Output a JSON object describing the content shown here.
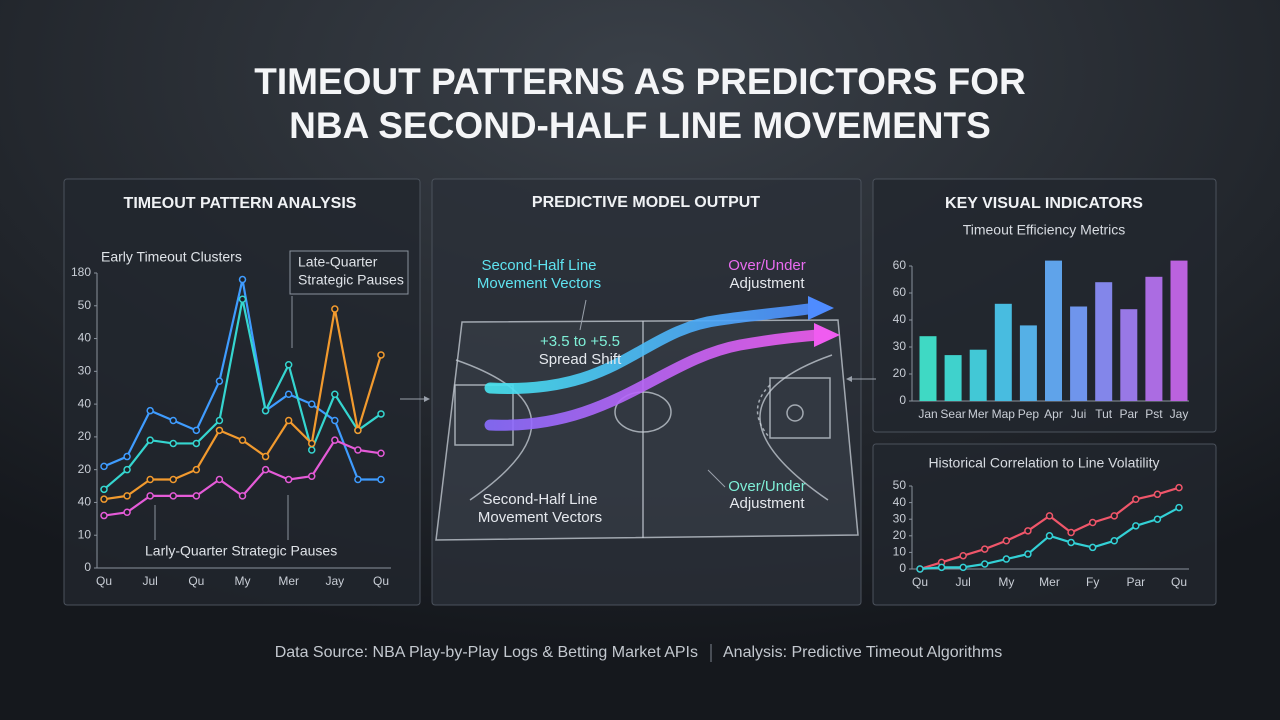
{
  "title": [
    "TIMEOUT PATTERNS AS PREDICTORS FOR",
    "NBA SECOND-HALF LINE MOVEMENTS"
  ],
  "chart_data": [
    {
      "type": "line",
      "title": "TIMEOUT PATTERN ANALYSIS",
      "annotations": [
        [
          "Early Timeout Clusters"
        ],
        [
          "Late-Quarter",
          "Strategic Pauses"
        ],
        [
          "Larly-Quarter Strategic Pauses"
        ]
      ],
      "categories": [
        "Qu",
        null,
        "Jul",
        null,
        "Qu",
        null,
        "My",
        null,
        "Mer",
        null,
        "Jay",
        null,
        "Qu"
      ],
      "ylim": [
        0,
        90
      ],
      "yticks": [
        0,
        10,
        {
          "value": 20,
          "label": "40"
        },
        {
          "value": 30,
          "label": "20"
        },
        {
          "value": 40,
          "label": "20"
        },
        {
          "value": 50,
          "label": "40"
        },
        {
          "value": 60,
          "label": "30"
        },
        {
          "value": 70,
          "label": "40"
        },
        {
          "value": 80,
          "label": "50"
        },
        {
          "value": 90,
          "label": "180"
        }
      ],
      "grid": false,
      "series": [
        {
          "color": "#3f9cff",
          "values": [
            31,
            34,
            48,
            45,
            42,
            57,
            88,
            48,
            53,
            50,
            45,
            27,
            27
          ]
        },
        {
          "color": "#35d6d0",
          "values": [
            24,
            30,
            39,
            38,
            38,
            45,
            82,
            48,
            62,
            36,
            53,
            42,
            47
          ]
        },
        {
          "color": "#f29a2e",
          "values": [
            21,
            22,
            27,
            27,
            30,
            42,
            39,
            34,
            45,
            38,
            79,
            42,
            65
          ]
        },
        {
          "color": "#e55bd8",
          "values": [
            16,
            17,
            22,
            22,
            22,
            27,
            22,
            30,
            27,
            28,
            39,
            36,
            35
          ]
        }
      ]
    },
    {
      "type": "bar",
      "title": "KEY VISUAL INDICATORS",
      "subtitle": "Timeout Efficiency Metrics",
      "categories": [
        "Jan",
        "Sear",
        "Mer",
        "Map",
        "Pep",
        "Apr",
        "Jui",
        "Tut",
        "Par",
        "Pst",
        "Jay"
      ],
      "values": [
        24,
        17,
        19,
        36,
        28,
        52,
        35,
        44,
        34,
        46,
        52
      ],
      "colors": [
        "#3fd9c4",
        "#3fd2cc",
        "#42c8d6",
        "#48bce0",
        "#55b0e6",
        "#5fa3ea",
        "#6f95ec",
        "#8386ea",
        "#9878e6",
        "#ab6ce2",
        "#bb62de"
      ],
      "ylim": [
        0,
        50
      ],
      "yticks": [
        0,
        {
          "value": 10,
          "label": "20"
        },
        {
          "value": 20,
          "label": "30"
        },
        {
          "value": 30,
          "label": "40"
        },
        {
          "value": 40,
          "label": "60"
        },
        {
          "value": 50,
          "label": "60"
        }
      ],
      "grid": false
    },
    {
      "type": "line",
      "title": "Historical Correlation to Line Volatility",
      "categories": [
        "Qu",
        null,
        "Jul",
        null,
        "My",
        null,
        "Mer",
        null,
        "Fy",
        null,
        "Par",
        null,
        "Qu"
      ],
      "ylim": [
        0,
        50
      ],
      "yticks": [
        0,
        10,
        20,
        30,
        40,
        50
      ],
      "grid": false,
      "series": [
        {
          "color": "#f0566a",
          "values": [
            0,
            4,
            8,
            12,
            17,
            23,
            32,
            22,
            28,
            32,
            42,
            45,
            49
          ]
        },
        {
          "color": "#33d1d6",
          "values": [
            0,
            1,
            1,
            3,
            6,
            9,
            20,
            16,
            13,
            17,
            26,
            30,
            37
          ]
        }
      ]
    }
  ],
  "diagram": {
    "title": "PREDICTIVE MODEL OUTPUT",
    "labels": [
      [
        "Second-Half Line",
        "Movement Vectors"
      ],
      [
        "Over/Under",
        "Adjustment"
      ],
      [
        "+3.5 to +5.5",
        "Spread Shift"
      ],
      [
        "Second-Half Line",
        "Movement Vectors"
      ],
      [
        "Over/Under",
        "Adjustment"
      ]
    ]
  },
  "footer": [
    "Data Source: NBA Play-by-Play Logs & Betting Market APIs",
    "Analysis: Predictive Timeout Algorithms"
  ]
}
